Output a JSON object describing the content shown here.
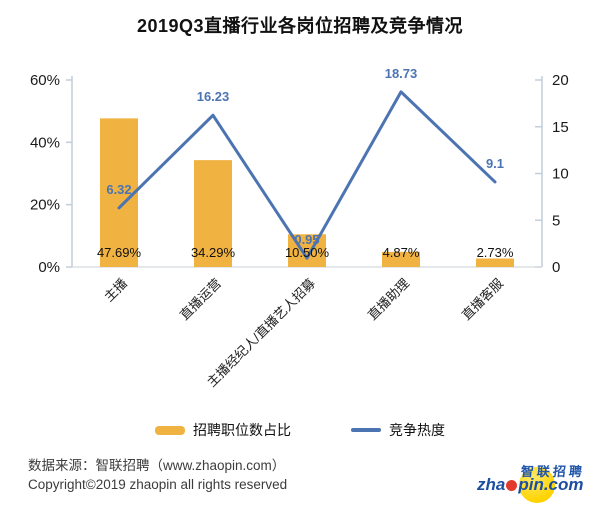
{
  "title": "2019Q3直播行业各岗位招聘及竞争情况",
  "chart_data": {
    "type": "bar+line",
    "categories": [
      "主播",
      "直播运营",
      "主播经纪人/直播艺人招募",
      "直播助理",
      "直播客服"
    ],
    "series": [
      {
        "name": "招聘职位数占比",
        "type": "bar",
        "axis": "left",
        "unit": "%",
        "values": [
          47.69,
          34.29,
          10.5,
          4.87,
          2.73
        ],
        "labels": [
          "47.69%",
          "34.29%",
          "10.50%",
          "4.87%",
          "2.73%"
        ]
      },
      {
        "name": "竞争热度",
        "type": "line",
        "axis": "right",
        "values": [
          6.32,
          16.23,
          0.95,
          18.73,
          9.1
        ],
        "labels": [
          "6.32",
          "16.23",
          "0.95",
          "18.73",
          "9.1"
        ]
      }
    ],
    "left_axis": {
      "min": 0,
      "max": 60,
      "tick_values": [
        0,
        20,
        40,
        60
      ],
      "tick_labels": [
        "0%",
        "20%",
        "40%",
        "60%"
      ]
    },
    "right_axis": {
      "min": 0,
      "max": 20,
      "tick_values": [
        0,
        5,
        10,
        15,
        20
      ],
      "tick_labels": [
        "0",
        "5",
        "10",
        "15",
        "20"
      ]
    },
    "grid": false,
    "legend_position": "bottom",
    "x_label_rotation": -45
  },
  "legend": {
    "bar_label": "招聘职位数占比",
    "line_label": "竞争热度"
  },
  "footer": {
    "source": "数据来源：智联招聘（www.zhaopin.com）",
    "copyright": "Copyright©2019 zhaopin all rights reserved"
  },
  "logo": {
    "cn": "智联招聘",
    "en_pre": "zha",
    "en_post": "pin.com"
  },
  "colors": {
    "bar": "#F0B240",
    "line": "#4C74B2",
    "line_label": "#4C74B2",
    "bar_label": "#111111",
    "axis": "#C2CEDA",
    "bottom_axis": "#D4D9DE",
    "tick_text": "#1a1a1a",
    "logo_blue": "#1d4fa1",
    "logo_yellow": "#ffd400",
    "logo_red": "#e23a2c"
  }
}
